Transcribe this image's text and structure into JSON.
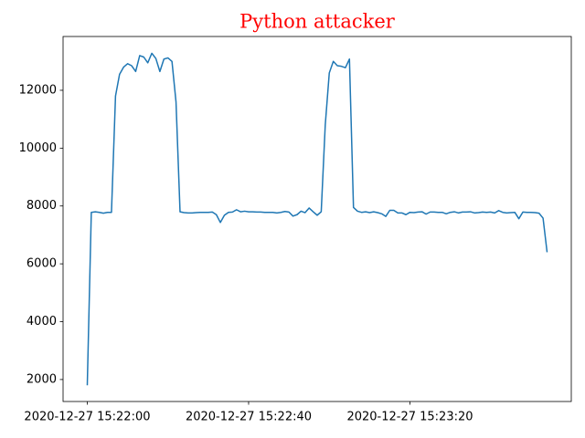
{
  "chart_data": {
    "type": "line",
    "title": "Python attacker",
    "title_color": "#ff0000",
    "x": [
      "2020-12-27 15:22:00",
      "2020-12-27 15:22:01",
      "2020-12-27 15:22:02",
      "2020-12-27 15:22:03",
      "2020-12-27 15:22:04",
      "2020-12-27 15:22:05",
      "2020-12-27 15:22:06",
      "2020-12-27 15:22:07",
      "2020-12-27 15:22:08",
      "2020-12-27 15:22:09",
      "2020-12-27 15:22:10",
      "2020-12-27 15:22:11",
      "2020-12-27 15:22:12",
      "2020-12-27 15:22:13",
      "2020-12-27 15:22:14",
      "2020-12-27 15:22:15",
      "2020-12-27 15:22:16",
      "2020-12-27 15:22:17",
      "2020-12-27 15:22:18",
      "2020-12-27 15:22:19",
      "2020-12-27 15:22:20",
      "2020-12-27 15:22:21",
      "2020-12-27 15:22:22",
      "2020-12-27 15:22:23",
      "2020-12-27 15:22:24",
      "2020-12-27 15:22:25",
      "2020-12-27 15:22:26",
      "2020-12-27 15:22:27",
      "2020-12-27 15:22:28",
      "2020-12-27 15:22:29",
      "2020-12-27 15:22:30",
      "2020-12-27 15:22:31",
      "2020-12-27 15:22:32",
      "2020-12-27 15:22:33",
      "2020-12-27 15:22:34",
      "2020-12-27 15:22:35",
      "2020-12-27 15:22:36",
      "2020-12-27 15:22:37",
      "2020-12-27 15:22:38",
      "2020-12-27 15:22:39",
      "2020-12-27 15:22:40",
      "2020-12-27 15:22:41",
      "2020-12-27 15:22:42",
      "2020-12-27 15:22:43",
      "2020-12-27 15:22:44",
      "2020-12-27 15:22:45",
      "2020-12-27 15:22:46",
      "2020-12-27 15:22:47",
      "2020-12-27 15:22:48",
      "2020-12-27 15:22:49",
      "2020-12-27 15:22:50",
      "2020-12-27 15:22:51",
      "2020-12-27 15:22:52",
      "2020-12-27 15:22:53",
      "2020-12-27 15:22:54",
      "2020-12-27 15:22:55",
      "2020-12-27 15:22:56",
      "2020-12-27 15:22:57",
      "2020-12-27 15:22:58",
      "2020-12-27 15:22:59",
      "2020-12-27 15:23:00",
      "2020-12-27 15:23:01",
      "2020-12-27 15:23:02",
      "2020-12-27 15:23:03",
      "2020-12-27 15:23:04",
      "2020-12-27 15:23:05",
      "2020-12-27 15:23:06",
      "2020-12-27 15:23:07",
      "2020-12-27 15:23:08",
      "2020-12-27 15:23:09",
      "2020-12-27 15:23:10",
      "2020-12-27 15:23:11",
      "2020-12-27 15:23:12",
      "2020-12-27 15:23:13",
      "2020-12-27 15:23:14",
      "2020-12-27 15:23:15",
      "2020-12-27 15:23:16",
      "2020-12-27 15:23:17",
      "2020-12-27 15:23:18",
      "2020-12-27 15:23:19",
      "2020-12-27 15:23:20",
      "2020-12-27 15:23:21",
      "2020-12-27 15:23:22",
      "2020-12-27 15:23:23",
      "2020-12-27 15:23:24",
      "2020-12-27 15:23:25",
      "2020-12-27 15:23:26",
      "2020-12-27 15:23:27",
      "2020-12-27 15:23:28",
      "2020-12-27 15:23:29",
      "2020-12-27 15:23:30",
      "2020-12-27 15:23:31",
      "2020-12-27 15:23:32",
      "2020-12-27 15:23:33",
      "2020-12-27 15:23:34",
      "2020-12-27 15:23:35",
      "2020-12-27 15:23:36",
      "2020-12-27 15:23:37",
      "2020-12-27 15:23:38",
      "2020-12-27 15:23:39",
      "2020-12-27 15:23:40",
      "2020-12-27 15:23:41",
      "2020-12-27 15:23:42",
      "2020-12-27 15:23:43",
      "2020-12-27 15:23:44",
      "2020-12-27 15:23:45",
      "2020-12-27 15:23:46",
      "2020-12-27 15:23:47",
      "2020-12-27 15:23:48",
      "2020-12-27 15:23:49",
      "2020-12-27 15:23:50",
      "2020-12-27 15:23:51",
      "2020-12-27 15:23:52",
      "2020-12-27 15:23:53",
      "2020-12-27 15:23:54"
    ],
    "series": [
      {
        "color": "#1f77b4",
        "values": [
          1800,
          7780,
          7800,
          7780,
          7750,
          7780,
          7780,
          11800,
          12550,
          12800,
          12920,
          12850,
          12650,
          13200,
          13150,
          12950,
          13280,
          13100,
          12650,
          13080,
          13120,
          13000,
          11600,
          7800,
          7770,
          7760,
          7760,
          7770,
          7780,
          7780,
          7780,
          7790,
          7700,
          7430,
          7680,
          7780,
          7790,
          7870,
          7800,
          7820,
          7800,
          7800,
          7790,
          7790,
          7780,
          7780,
          7780,
          7760,
          7780,
          7810,
          7790,
          7650,
          7700,
          7820,
          7770,
          7930,
          7800,
          7680,
          7800,
          10800,
          12600,
          13000,
          12850,
          12830,
          12780,
          13080,
          7950,
          7820,
          7780,
          7800,
          7770,
          7800,
          7770,
          7730,
          7640,
          7850,
          7850,
          7760,
          7760,
          7700,
          7780,
          7770,
          7790,
          7800,
          7720,
          7790,
          7790,
          7780,
          7780,
          7730,
          7780,
          7800,
          7760,
          7790,
          7790,
          7800,
          7760,
          7770,
          7790,
          7780,
          7790,
          7760,
          7840,
          7780,
          7760,
          7770,
          7780,
          7560,
          7790,
          7780,
          7780,
          7770,
          7750,
          7580,
          6400
        ]
      }
    ],
    "xlim": [
      "2020-12-27 15:21:54",
      "2020-12-27 15:24:00"
    ],
    "xticks": [
      "2020-12-27 15:22:00",
      "2020-12-27 15:22:40",
      "2020-12-27 15:23:20"
    ],
    "ylim": [
      1240,
      13860
    ],
    "yticks": [
      2000,
      4000,
      6000,
      8000,
      10000,
      12000
    ]
  }
}
